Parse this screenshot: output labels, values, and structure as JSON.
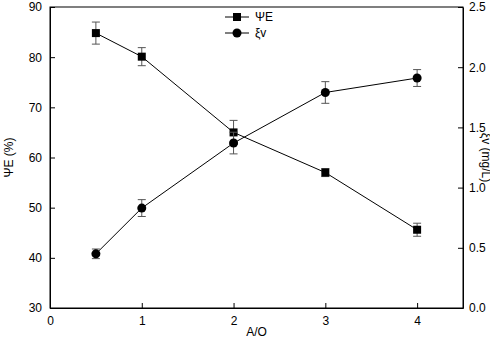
{
  "chart_data": {
    "type": "line",
    "x_label": "A/O",
    "y_label": "ΨE (%)",
    "y2_label": "ξv (mg/L)",
    "x": [
      0.5,
      1,
      2,
      3,
      4
    ],
    "xlim": [
      0,
      4.5
    ],
    "xticks": [
      0,
      1,
      2,
      3,
      4
    ],
    "ylim": [
      30,
      90
    ],
    "yticks": [
      30,
      40,
      50,
      60,
      70,
      80,
      90
    ],
    "y2lim": [
      0,
      2.5
    ],
    "y2ticks": [
      {
        "value": 0,
        "label": "0.0"
      },
      0.5,
      {
        "value": 1,
        "label": "1.0"
      },
      1.5,
      {
        "value": 2,
        "label": "2.0"
      },
      2.5
    ],
    "legend": "top",
    "series": [
      {
        "name": "ΨE",
        "color": "#000000",
        "marker": "square",
        "line_style": "solid",
        "values": [
          84.8,
          80.1,
          65.0,
          57.0,
          45.6
        ],
        "errors": [
          2.2,
          1.8,
          2.4,
          0.8,
          1.3
        ]
      },
      {
        "name": "ξv",
        "color": "#000000",
        "marker": "circle",
        "line_style": "solid",
        "axis": "y2",
        "values": [
          0.45,
          0.83,
          1.37,
          1.79,
          1.91
        ],
        "errors": [
          0.04,
          0.07,
          0.09,
          0.09,
          0.07
        ]
      }
    ]
  }
}
